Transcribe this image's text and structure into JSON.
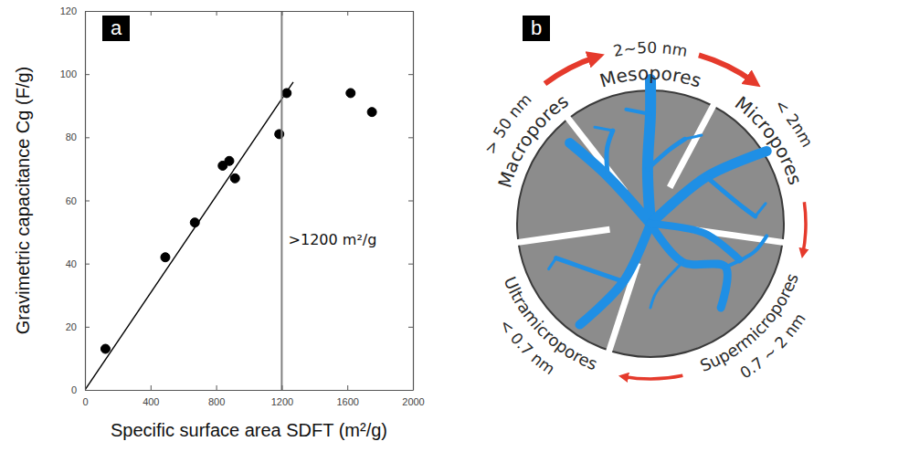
{
  "chart_data": {
    "type": "scatter",
    "panel": "a",
    "x_label": "Specific surface area SDFT (m²/g)",
    "y_label": "Gravimetric capacitance Cg (F/g)",
    "xlim": [
      0,
      2000
    ],
    "xticks": [
      0,
      400,
      800,
      1200,
      1600,
      2000
    ],
    "ylim": [
      0,
      120
    ],
    "yticks": [
      0,
      20,
      40,
      60,
      80,
      100,
      120
    ],
    "grid": false,
    "series": [
      {
        "type": "scatter",
        "marker": "circle",
        "color": "#000000",
        "x": [
          125,
          490,
          670,
          840,
          880,
          915,
          1185,
          1230,
          1620,
          1750
        ],
        "values": [
          13,
          42,
          53,
          71,
          72.5,
          67,
          81,
          94,
          94,
          88
        ]
      },
      {
        "type": "line",
        "line_style": "solid",
        "color": "#000000",
        "x": [
          0,
          1270
        ],
        "values": [
          0,
          97.5
        ]
      },
      {
        "type": "line",
        "line_style": "solid",
        "color": "#808080",
        "x": [
          1200,
          1200
        ],
        "values": [
          0,
          120
        ]
      }
    ],
    "annotations": [
      {
        "text": ">1200 m²/g",
        "x": 1240,
        "y": 46
      }
    ]
  },
  "diagram": {
    "panel": "b",
    "pores": [
      {
        "label": "Macropores",
        "size": "> 50 nm"
      },
      {
        "label": "Mesopores",
        "size": "2~50 nm"
      },
      {
        "label": "Micropores",
        "size": "< 2nm"
      },
      {
        "label": "Supermicropores",
        "size": "0.7 ~ 2 nm"
      },
      {
        "label": "Ultramicropores",
        "size": "< 0.7 nm"
      }
    ]
  }
}
